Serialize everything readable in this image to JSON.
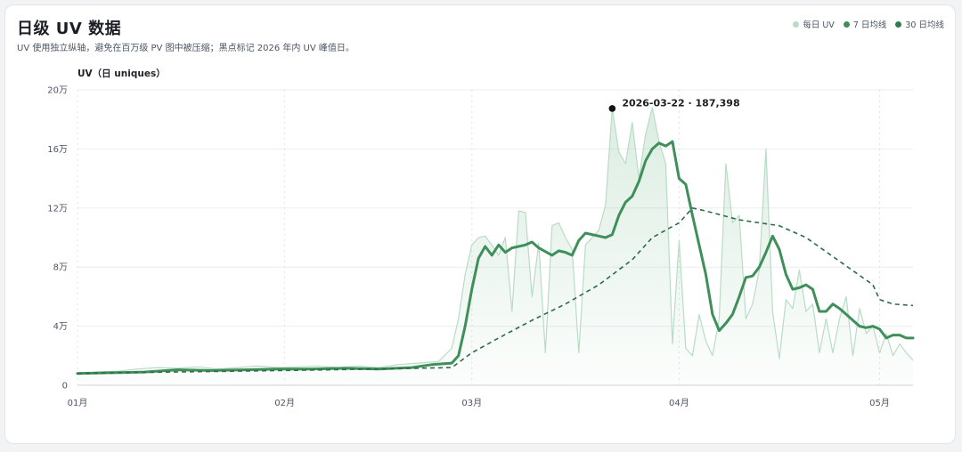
{
  "header": {
    "title": "日级 UV 数据",
    "subtitle": "UV 使用独立纵轴，避免在百万级 PV 图中被压缩；黑点标记 2026 年内 UV 峰值日。"
  },
  "legend": [
    {
      "label": "每日 UV",
      "color": "#b9dcc6"
    },
    {
      "label": "7 日均线",
      "color": "#3f8f5a"
    },
    {
      "label": "30 日均线",
      "color": "#2e7d4f"
    }
  ],
  "chart_data": {
    "type": "line",
    "ylabel": "UV（日 uniques）",
    "ylim": [
      0,
      200000
    ],
    "yticks": [
      {
        "value": 0,
        "label": "0"
      },
      {
        "value": 40000,
        "label": "4万"
      },
      {
        "value": 80000,
        "label": "8万"
      },
      {
        "value": 120000,
        "label": "12万"
      },
      {
        "value": 160000,
        "label": "16万"
      },
      {
        "value": 200000,
        "label": "20万"
      }
    ],
    "xticks": [
      {
        "date": "2026-01-01",
        "label": "01月"
      },
      {
        "date": "2026-02-01",
        "label": "02月"
      },
      {
        "date": "2026-03-01",
        "label": "03月"
      },
      {
        "date": "2026-04-01",
        "label": "04月"
      },
      {
        "date": "2026-05-01",
        "label": "05月"
      }
    ],
    "xrange": [
      "2026-01-01",
      "2026-05-06"
    ],
    "series": [
      {
        "name": "每日 UV",
        "style": "thin-area",
        "points": [
          [
            "2026-01-01",
            8000
          ],
          [
            "2026-01-04",
            9000
          ],
          [
            "2026-01-07",
            9500
          ],
          [
            "2026-01-10",
            11000
          ],
          [
            "2026-01-13",
            12000
          ],
          [
            "2026-01-16",
            11500
          ],
          [
            "2026-01-19",
            12500
          ],
          [
            "2026-01-22",
            11000
          ],
          [
            "2026-01-25",
            12000
          ],
          [
            "2026-01-28",
            13000
          ],
          [
            "2026-01-31",
            12000
          ],
          [
            "2026-02-03",
            12500
          ],
          [
            "2026-02-06",
            13000
          ],
          [
            "2026-02-09",
            12000
          ],
          [
            "2026-02-12",
            13000
          ],
          [
            "2026-02-15",
            12000
          ],
          [
            "2026-02-18",
            14000
          ],
          [
            "2026-02-21",
            15000
          ],
          [
            "2026-02-24",
            16000
          ],
          [
            "2026-02-26",
            25000
          ],
          [
            "2026-02-27",
            45000
          ],
          [
            "2026-02-28",
            75000
          ],
          [
            "2026-03-01",
            95000
          ],
          [
            "2026-03-02",
            100000
          ],
          [
            "2026-03-03",
            101000
          ],
          [
            "2026-03-04",
            95000
          ],
          [
            "2026-03-05",
            88000
          ],
          [
            "2026-03-06",
            100000
          ],
          [
            "2026-03-07",
            50000
          ],
          [
            "2026-03-08",
            118000
          ],
          [
            "2026-03-09",
            117000
          ],
          [
            "2026-03-10",
            60000
          ],
          [
            "2026-03-11",
            96000
          ],
          [
            "2026-03-12",
            22000
          ],
          [
            "2026-03-13",
            108000
          ],
          [
            "2026-03-14",
            110000
          ],
          [
            "2026-03-15",
            100000
          ],
          [
            "2026-03-16",
            92000
          ],
          [
            "2026-03-17",
            22000
          ],
          [
            "2026-03-18",
            95000
          ],
          [
            "2026-03-19",
            100000
          ],
          [
            "2026-03-20",
            105000
          ],
          [
            "2026-03-21",
            122000
          ],
          [
            "2026-03-22",
            187398
          ],
          [
            "2026-03-23",
            158000
          ],
          [
            "2026-03-24",
            150000
          ],
          [
            "2026-03-25",
            178000
          ],
          [
            "2026-03-26",
            140000
          ],
          [
            "2026-03-27",
            170000
          ],
          [
            "2026-03-28",
            188000
          ],
          [
            "2026-03-29",
            165000
          ],
          [
            "2026-03-30",
            150000
          ],
          [
            "2026-03-31",
            28000
          ],
          [
            "2026-04-01",
            98000
          ],
          [
            "2026-04-02",
            25000
          ],
          [
            "2026-04-03",
            20000
          ],
          [
            "2026-04-04",
            48000
          ],
          [
            "2026-04-05",
            30000
          ],
          [
            "2026-04-06",
            20000
          ],
          [
            "2026-04-07",
            45000
          ],
          [
            "2026-04-08",
            150000
          ],
          [
            "2026-04-09",
            110000
          ],
          [
            "2026-04-10",
            115000
          ],
          [
            "2026-04-11",
            45000
          ],
          [
            "2026-04-12",
            55000
          ],
          [
            "2026-04-13",
            78000
          ],
          [
            "2026-04-14",
            160000
          ],
          [
            "2026-04-15",
            50000
          ],
          [
            "2026-04-16",
            18000
          ],
          [
            "2026-04-17",
            58000
          ],
          [
            "2026-04-18",
            52000
          ],
          [
            "2026-04-19",
            78000
          ],
          [
            "2026-04-20",
            50000
          ],
          [
            "2026-04-21",
            55000
          ],
          [
            "2026-04-22",
            22000
          ],
          [
            "2026-04-23",
            45000
          ],
          [
            "2026-04-24",
            22000
          ],
          [
            "2026-04-25",
            45000
          ],
          [
            "2026-04-26",
            60000
          ],
          [
            "2026-04-27",
            20000
          ],
          [
            "2026-04-28",
            52000
          ],
          [
            "2026-04-29",
            35000
          ],
          [
            "2026-04-30",
            40000
          ],
          [
            "2026-05-01",
            22000
          ],
          [
            "2026-05-02",
            35000
          ],
          [
            "2026-05-03",
            20000
          ],
          [
            "2026-05-04",
            28000
          ],
          [
            "2026-05-05",
            22000
          ],
          [
            "2026-05-06",
            17000
          ]
        ]
      },
      {
        "name": "7 日均线",
        "style": "thick",
        "points": [
          [
            "2026-01-01",
            8000
          ],
          [
            "2026-01-06",
            8500
          ],
          [
            "2026-01-11",
            9000
          ],
          [
            "2026-01-16",
            10500
          ],
          [
            "2026-01-21",
            10000
          ],
          [
            "2026-01-26",
            10500
          ],
          [
            "2026-01-31",
            11000
          ],
          [
            "2026-02-05",
            11000
          ],
          [
            "2026-02-10",
            11500
          ],
          [
            "2026-02-15",
            11000
          ],
          [
            "2026-02-20",
            12000
          ],
          [
            "2026-02-23",
            14000
          ],
          [
            "2026-02-26",
            15000
          ],
          [
            "2026-02-27",
            20000
          ],
          [
            "2026-02-28",
            40000
          ],
          [
            "2026-03-01",
            65000
          ],
          [
            "2026-03-02",
            86000
          ],
          [
            "2026-03-03",
            94000
          ],
          [
            "2026-03-04",
            88000
          ],
          [
            "2026-03-05",
            95000
          ],
          [
            "2026-03-06",
            90000
          ],
          [
            "2026-03-07",
            93000
          ],
          [
            "2026-03-09",
            95000
          ],
          [
            "2026-03-10",
            97000
          ],
          [
            "2026-03-11",
            93000
          ],
          [
            "2026-03-13",
            88000
          ],
          [
            "2026-03-14",
            91000
          ],
          [
            "2026-03-15",
            90000
          ],
          [
            "2026-03-16",
            88000
          ],
          [
            "2026-03-17",
            98000
          ],
          [
            "2026-03-18",
            103000
          ],
          [
            "2026-03-20",
            101000
          ],
          [
            "2026-03-21",
            100000
          ],
          [
            "2026-03-22",
            102000
          ],
          [
            "2026-03-23",
            115000
          ],
          [
            "2026-03-24",
            124000
          ],
          [
            "2026-03-25",
            128000
          ],
          [
            "2026-03-26",
            138000
          ],
          [
            "2026-03-27",
            152000
          ],
          [
            "2026-03-28",
            160000
          ],
          [
            "2026-03-29",
            164000
          ],
          [
            "2026-03-30",
            162000
          ],
          [
            "2026-03-31",
            165000
          ],
          [
            "2026-04-01",
            140000
          ],
          [
            "2026-04-02",
            136000
          ],
          [
            "2026-04-03",
            115000
          ],
          [
            "2026-04-04",
            95000
          ],
          [
            "2026-04-05",
            75000
          ],
          [
            "2026-04-06",
            48000
          ],
          [
            "2026-04-07",
            37000
          ],
          [
            "2026-04-08",
            42000
          ],
          [
            "2026-04-09",
            48000
          ],
          [
            "2026-04-10",
            60000
          ],
          [
            "2026-04-11",
            73000
          ],
          [
            "2026-04-12",
            74000
          ],
          [
            "2026-04-13",
            80000
          ],
          [
            "2026-04-14",
            90000
          ],
          [
            "2026-04-15",
            101000
          ],
          [
            "2026-04-16",
            92000
          ],
          [
            "2026-04-17",
            75000
          ],
          [
            "2026-04-18",
            65000
          ],
          [
            "2026-04-19",
            66000
          ],
          [
            "2026-04-20",
            68000
          ],
          [
            "2026-04-21",
            65000
          ],
          [
            "2026-04-22",
            50000
          ],
          [
            "2026-04-23",
            50000
          ],
          [
            "2026-04-24",
            55000
          ],
          [
            "2026-04-25",
            52000
          ],
          [
            "2026-04-26",
            48000
          ],
          [
            "2026-04-27",
            44000
          ],
          [
            "2026-04-28",
            40000
          ],
          [
            "2026-04-29",
            39000
          ],
          [
            "2026-04-30",
            40000
          ],
          [
            "2026-05-01",
            38000
          ],
          [
            "2026-05-02",
            32000
          ],
          [
            "2026-05-03",
            34000
          ],
          [
            "2026-05-04",
            34000
          ],
          [
            "2026-05-05",
            32000
          ],
          [
            "2026-05-06",
            32000
          ]
        ]
      },
      {
        "name": "30 日均线",
        "style": "dashed",
        "points": [
          [
            "2026-01-01",
            8000
          ],
          [
            "2026-01-15",
            9000
          ],
          [
            "2026-02-01",
            10000
          ],
          [
            "2026-02-15",
            11000
          ],
          [
            "2026-02-26",
            12000
          ],
          [
            "2026-03-01",
            22000
          ],
          [
            "2026-03-05",
            32000
          ],
          [
            "2026-03-10",
            44000
          ],
          [
            "2026-03-15",
            55000
          ],
          [
            "2026-03-20",
            68000
          ],
          [
            "2026-03-25",
            85000
          ],
          [
            "2026-03-28",
            100000
          ],
          [
            "2026-04-01",
            110000
          ],
          [
            "2026-04-03",
            120000
          ],
          [
            "2026-04-05",
            118000
          ],
          [
            "2026-04-10",
            112000
          ],
          [
            "2026-04-13",
            110000
          ],
          [
            "2026-04-16",
            108000
          ],
          [
            "2026-04-20",
            100000
          ],
          [
            "2026-04-25",
            84000
          ],
          [
            "2026-04-30",
            68000
          ],
          [
            "2026-05-01",
            58000
          ],
          [
            "2026-05-03",
            55000
          ],
          [
            "2026-05-06",
            54000
          ]
        ]
      }
    ],
    "annotation": {
      "date": "2026-03-22",
      "value": 187398,
      "label": "2026-03-22 · 187,398"
    }
  }
}
